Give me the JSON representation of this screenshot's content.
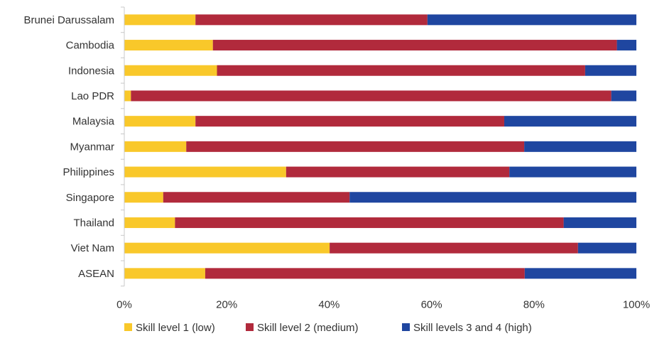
{
  "chart_data": {
    "type": "bar",
    "orientation": "horizontal",
    "stacked": true,
    "percent_stacked": true,
    "categories": [
      "Brunei Darussalam",
      "Cambodia",
      "Indonesia",
      "Lao PDR",
      "Malaysia",
      "Myanmar",
      "Philippines",
      "Singapore",
      "Thailand",
      "Viet Nam",
      "ASEAN"
    ],
    "series": [
      {
        "name": "Skill level 1 (low)",
        "color": "#f9c82a",
        "values": [
          13.9,
          17.3,
          18.1,
          1.3,
          13.9,
          12.1,
          31.6,
          7.6,
          9.9,
          40.1,
          15.8
        ]
      },
      {
        "name": "Skill level 2 (medium)",
        "color": "#b12a3c",
        "values": [
          45.3,
          78.9,
          71.9,
          93.8,
          60.3,
          66.0,
          43.6,
          36.4,
          75.9,
          48.5,
          62.4
        ]
      },
      {
        "name": "Skill levels 3 and 4 (high)",
        "color": "#1f46a0",
        "values": [
          40.8,
          3.8,
          10.0,
          4.9,
          25.8,
          21.9,
          24.8,
          56.0,
          14.2,
          11.4,
          21.8
        ]
      }
    ],
    "xlim": [
      0,
      100
    ],
    "x_ticks": [
      "0%",
      "20%",
      "40%",
      "60%",
      "80%",
      "100%"
    ],
    "grid": false,
    "legend_position": "bottom"
  }
}
